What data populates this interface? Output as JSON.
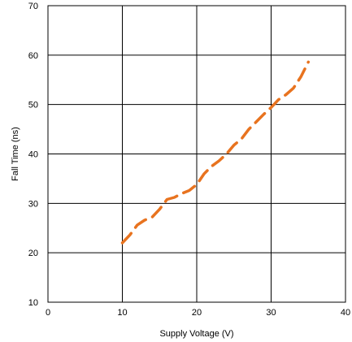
{
  "chart_data": {
    "type": "line",
    "title": "",
    "xlabel": "Supply Voltage (V)",
    "ylabel": "Fall Time (ns)",
    "xlim": [
      0,
      40
    ],
    "ylim": [
      10,
      70
    ],
    "xticks": [
      0,
      10,
      20,
      30,
      40
    ],
    "yticks": [
      10,
      20,
      30,
      40,
      50,
      60,
      70
    ],
    "grid": true,
    "line_style": "dashed",
    "series": [
      {
        "color": "#e8731f",
        "x": [
          10,
          11,
          12,
          13,
          14,
          15,
          16,
          17,
          18,
          19,
          20,
          21,
          22,
          23,
          24,
          25,
          26,
          27,
          28,
          29,
          30,
          31,
          32,
          33,
          34,
          35
        ],
        "y": [
          22.0,
          23.6,
          25.6,
          26.6,
          27.2,
          28.8,
          30.8,
          31.2,
          32.0,
          32.6,
          33.8,
          36.0,
          37.5,
          38.6,
          40.0,
          41.8,
          43.0,
          45.0,
          46.5,
          48.0,
          49.4,
          51.0,
          52.0,
          53.3,
          55.6,
          58.6
        ]
      }
    ]
  }
}
